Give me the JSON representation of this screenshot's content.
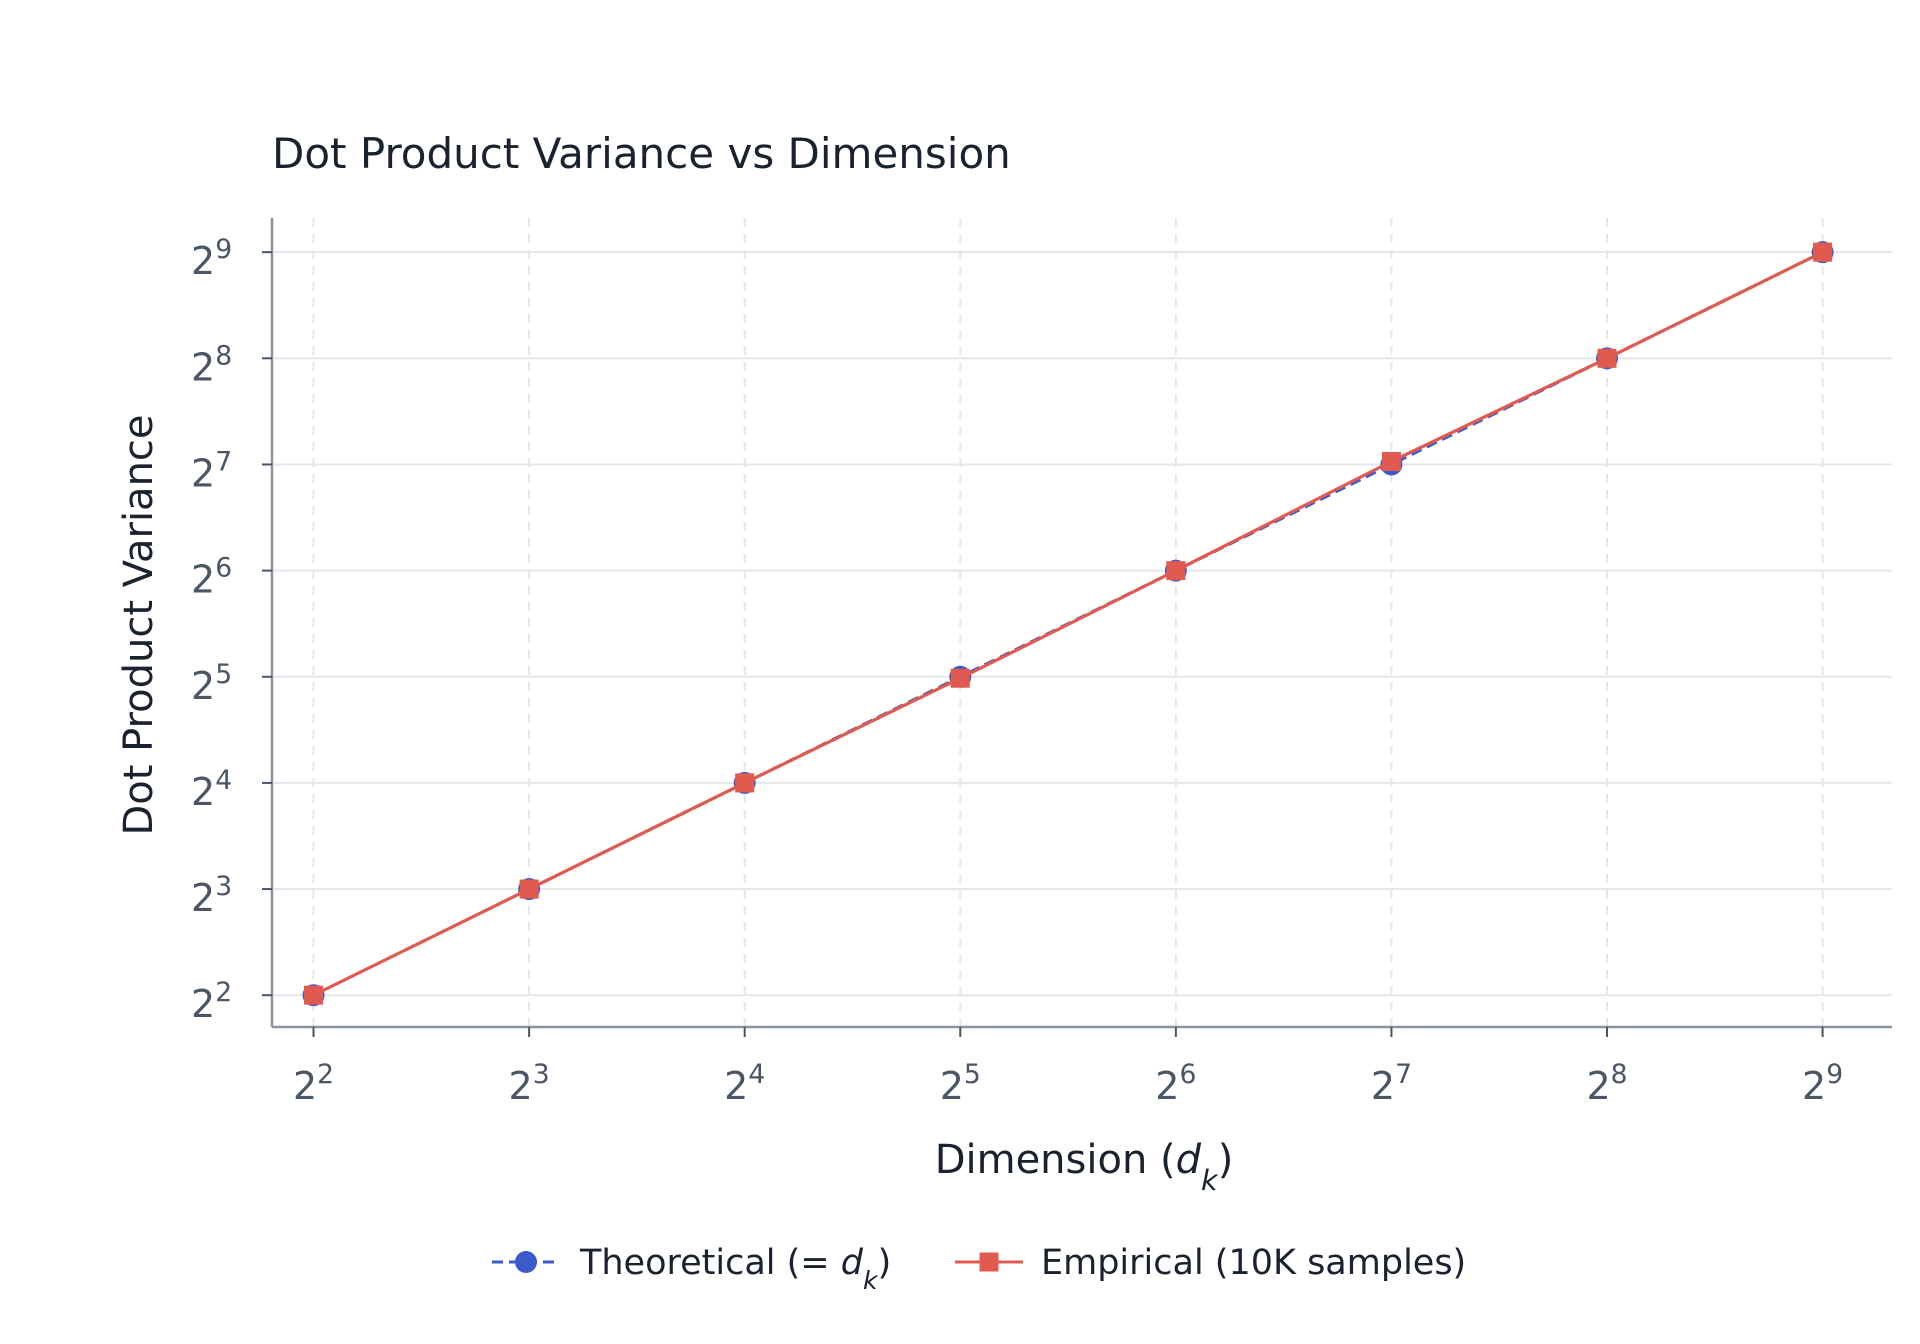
{
  "chart_data": {
    "type": "line",
    "title": "Dot Product Variance vs Dimension",
    "xlabel": "Dimension (d_k)",
    "xlabel_parts": {
      "prefix": "Dimension (",
      "var": "d",
      "sub": "k",
      "suffix": ")"
    },
    "ylabel": "Dot Product Variance",
    "x_scale": "log2",
    "y_scale": "log2",
    "x": [
      4,
      8,
      16,
      32,
      64,
      128,
      256,
      512
    ],
    "xlim": [
      3.5,
      640
    ],
    "ylim": [
      3.25,
      640
    ],
    "x_ticks": [
      4,
      8,
      16,
      32,
      64,
      128,
      256,
      512
    ],
    "y_ticks": [
      4,
      8,
      16,
      32,
      64,
      128,
      256,
      512
    ],
    "tick_base": "2",
    "tick_exponents": [
      "2",
      "3",
      "4",
      "5",
      "6",
      "7",
      "8",
      "9"
    ],
    "grid": true,
    "legend_position": "bottom-center",
    "series": [
      {
        "name": "Theoretical (= d_k)",
        "label_parts": {
          "prefix": "Theoretical (= ",
          "var": "d",
          "sub": "k",
          "suffix": ")"
        },
        "values": [
          4,
          8,
          16,
          32,
          64,
          128,
          256,
          512
        ],
        "color": "#3b5bcc",
        "line_style": "dashed",
        "marker": "circle"
      },
      {
        "name": "Empirical (10K samples)",
        "label_parts": {
          "prefix": "Empirical (10K samples)",
          "var": "",
          "sub": "",
          "suffix": ""
        },
        "values": [
          4.0,
          8.0,
          16.0,
          31.7,
          64.0,
          130.5,
          256.0,
          512.0
        ],
        "color": "#e05a4f",
        "line_style": "solid",
        "marker": "square"
      }
    ]
  }
}
